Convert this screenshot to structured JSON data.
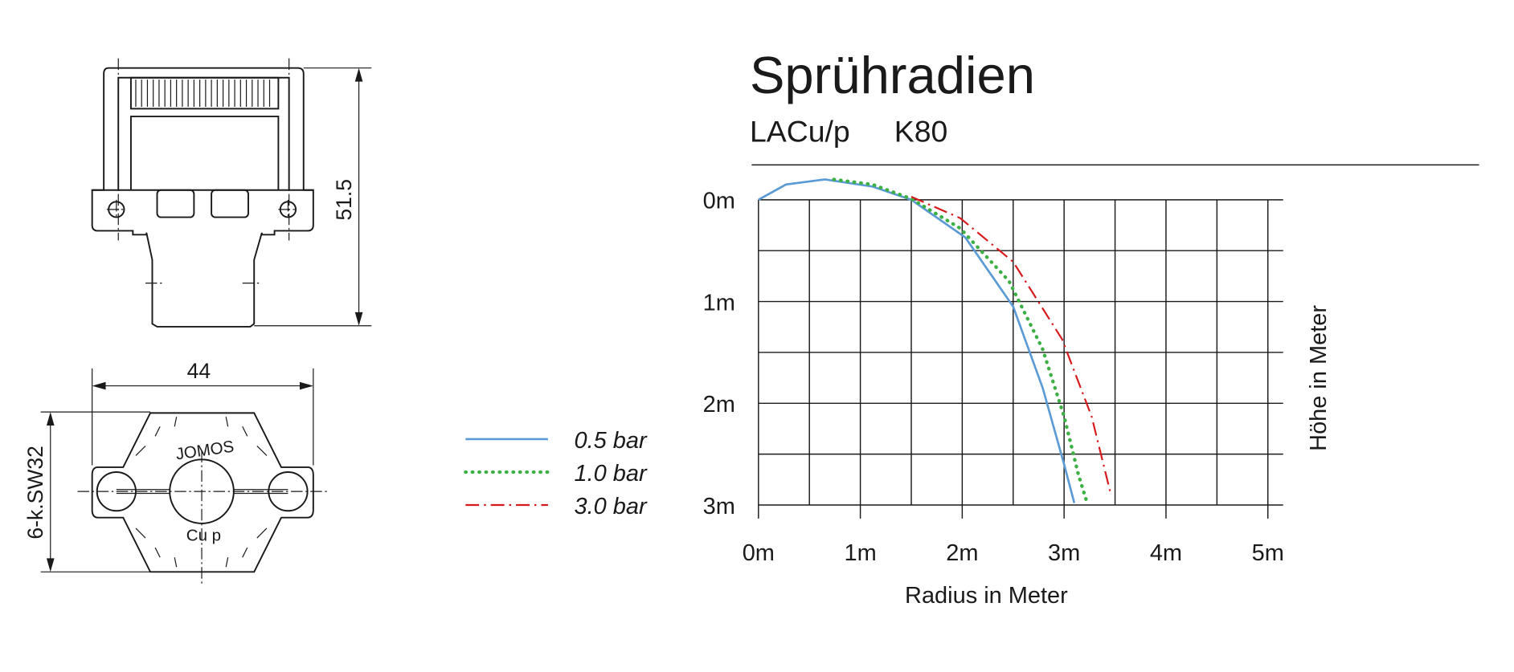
{
  "drawing": {
    "height_dimension": "51.5",
    "width_dimension": "44",
    "hex_dimension": "6-k.SW32",
    "brand": "JOMOS",
    "material": "Cu p"
  },
  "chart_data": {
    "type": "line",
    "title": "Sprühradien",
    "subtitle": [
      "LACu/p",
      "K80"
    ],
    "x_label": "Radius in Meter",
    "y_label": "Höhe in Meter",
    "xlim": [
      0,
      5.15
    ],
    "ylim": [
      0,
      3
    ],
    "y_inverted": true,
    "grid": true,
    "xticks": [
      {
        "value": 0,
        "label": "0m"
      },
      {
        "value": 1,
        "label": "1m"
      },
      {
        "value": 2,
        "label": "2m"
      },
      {
        "value": 3,
        "label": "3m"
      },
      {
        "value": 4,
        "label": "4m"
      },
      {
        "value": 5,
        "label": "5m"
      }
    ],
    "yticks": [
      {
        "value": 0,
        "label": "0m"
      },
      {
        "value": 1,
        "label": "1m"
      },
      {
        "value": 2,
        "label": "2m"
      },
      {
        "value": 3,
        "label": "3m"
      }
    ],
    "minor_xticks": [
      0.5,
      1.5,
      2.5,
      3.5,
      4.5
    ],
    "minor_yticks": [
      0.5,
      1.5,
      2.5
    ],
    "series": [
      {
        "name": "0.5 bar",
        "color": "#5b9bd5",
        "line_style": "solid",
        "x": [
          0,
          0.27,
          0.65,
          1.12,
          1.5,
          2.03,
          2.5,
          2.79,
          3.0,
          3.1
        ],
        "values": [
          0,
          -0.15,
          -0.2,
          -0.13,
          0,
          0.37,
          1.05,
          1.85,
          2.6,
          2.98
        ]
      },
      {
        "name": "1.0 bar",
        "color": "#3cb043",
        "line_style": "dotted",
        "x": [
          0.74,
          1.12,
          1.5,
          1.98,
          2.46,
          2.79,
          3.0,
          3.14,
          3.22
        ],
        "values": [
          -0.2,
          -0.15,
          -0.01,
          0.28,
          0.8,
          1.47,
          2.13,
          2.7,
          2.96
        ]
      },
      {
        "name": "3.0 bar",
        "color": "#d7191c",
        "line_style": "dashdot",
        "x": [
          1.5,
          1.98,
          2.5,
          2.98,
          3.27,
          3.46
        ],
        "values": [
          -0.03,
          0.18,
          0.61,
          1.37,
          2.13,
          2.9
        ]
      }
    ]
  }
}
